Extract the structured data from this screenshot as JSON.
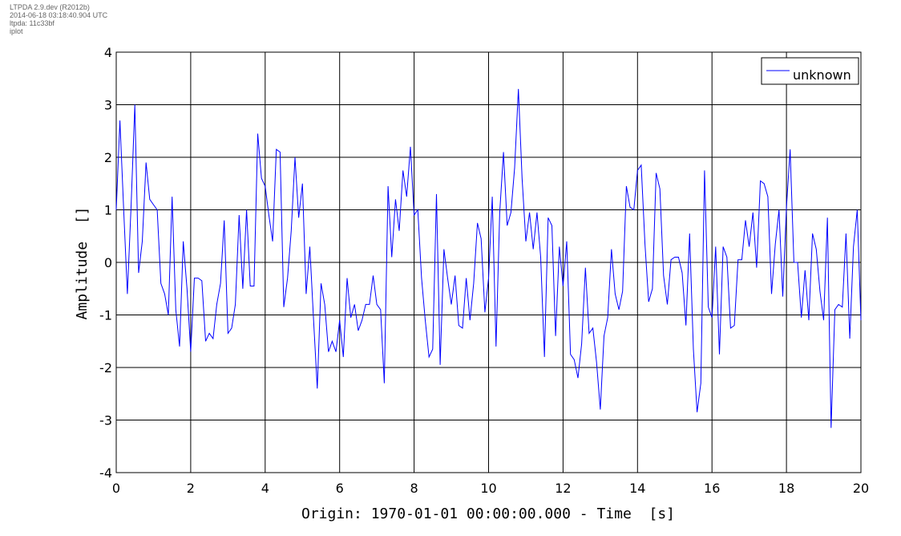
{
  "meta": {
    "line1": "LTPDA 2.9.dev (R2012b)",
    "line2": "2014-06-18 03:18:40.904 UTC",
    "line3": "ltpda: 11c33bf",
    "line4": "iplot"
  },
  "chart_data": {
    "type": "line",
    "xlabel": "Origin: 1970-01-01 00:00:00.000 - Time  [s]",
    "ylabel": "Amplitude  []",
    "xlim": [
      0,
      20
    ],
    "ylim": [
      -4,
      4
    ],
    "xticks": [
      0,
      2,
      4,
      6,
      8,
      10,
      12,
      14,
      16,
      18,
      20
    ],
    "yticks": [
      -4,
      -3,
      -2,
      -1,
      0,
      1,
      2,
      3,
      4
    ],
    "grid": true,
    "legend_position": "top-right",
    "line_color": "#0000ff",
    "series": [
      {
        "name": "unknown",
        "x": [
          0.0,
          0.1,
          0.2,
          0.3,
          0.4,
          0.5,
          0.6,
          0.7,
          0.8,
          0.9,
          1.0,
          1.1,
          1.2,
          1.3,
          1.4,
          1.5,
          1.6,
          1.7,
          1.8,
          1.9,
          2.0,
          2.1,
          2.2,
          2.3,
          2.4,
          2.5,
          2.6,
          2.7,
          2.8,
          2.9,
          3.0,
          3.1,
          3.2,
          3.3,
          3.4,
          3.5,
          3.6,
          3.7,
          3.8,
          3.9,
          4.0,
          4.1,
          4.2,
          4.3,
          4.4,
          4.5,
          4.6,
          4.7,
          4.8,
          4.9,
          5.0,
          5.1,
          5.2,
          5.3,
          5.4,
          5.5,
          5.6,
          5.7,
          5.8,
          5.9,
          6.0,
          6.1,
          6.2,
          6.3,
          6.4,
          6.5,
          6.6,
          6.7,
          6.8,
          6.9,
          7.0,
          7.1,
          7.2,
          7.3,
          7.4,
          7.5,
          7.6,
          7.7,
          7.8,
          7.9,
          8.0,
          8.1,
          8.2,
          8.3,
          8.4,
          8.5,
          8.6,
          8.7,
          8.8,
          8.9,
          9.0,
          9.1,
          9.2,
          9.3,
          9.4,
          9.5,
          9.6,
          9.7,
          9.8,
          9.9,
          10.0,
          10.1,
          10.2,
          10.3,
          10.4,
          10.5,
          10.6,
          10.7,
          10.8,
          10.9,
          11.0,
          11.1,
          11.2,
          11.3,
          11.4,
          11.5,
          11.6,
          11.7,
          11.8,
          11.9,
          12.0,
          12.1,
          12.2,
          12.3,
          12.4,
          12.5,
          12.6,
          12.7,
          12.8,
          12.9,
          13.0,
          13.1,
          13.2,
          13.3,
          13.4,
          13.5,
          13.6,
          13.7,
          13.8,
          13.9,
          14.0,
          14.1,
          14.2,
          14.3,
          14.4,
          14.5,
          14.6,
          14.7,
          14.8,
          14.9,
          15.0,
          15.1,
          15.2,
          15.3,
          15.4,
          15.5,
          15.6,
          15.7,
          15.8,
          15.9,
          16.0,
          16.1,
          16.2,
          16.3,
          16.4,
          16.5,
          16.6,
          16.7,
          16.8,
          16.9,
          17.0,
          17.1,
          17.2,
          17.3,
          17.4,
          17.5,
          17.6,
          17.7,
          17.8,
          17.9,
          18.0,
          18.1,
          18.2,
          18.3,
          18.4,
          18.5,
          18.6,
          18.7,
          18.8,
          18.9,
          19.0,
          19.1,
          19.2,
          19.3,
          19.4,
          19.5,
          19.6,
          19.7,
          19.8,
          19.9,
          20.0
        ],
        "y": [
          1.0,
          2.7,
          1.0,
          -0.6,
          1.1,
          3.0,
          -0.2,
          0.4,
          1.9,
          1.2,
          1.1,
          1.0,
          -0.4,
          -0.6,
          -1.0,
          1.25,
          -0.9,
          -1.6,
          0.4,
          -0.5,
          -1.7,
          -0.3,
          -0.3,
          -0.35,
          -1.5,
          -1.35,
          -1.45,
          -0.8,
          -0.4,
          0.8,
          -1.35,
          -1.25,
          -0.8,
          0.9,
          -0.5,
          1.0,
          -0.45,
          -0.45,
          2.45,
          1.6,
          1.45,
          0.9,
          0.4,
          2.15,
          2.1,
          -0.85,
          -0.3,
          0.6,
          2.0,
          0.85,
          1.5,
          -0.6,
          0.3,
          -1.1,
          -2.4,
          -0.4,
          -0.8,
          -1.7,
          -1.5,
          -1.7,
          -1.1,
          -1.8,
          -0.3,
          -1.05,
          -0.8,
          -1.3,
          -1.1,
          -0.8,
          -0.8,
          -0.25,
          -0.8,
          -0.9,
          -2.3,
          1.45,
          0.1,
          1.2,
          0.6,
          1.75,
          1.25,
          2.2,
          0.9,
          1.0,
          -0.3,
          -1.1,
          -1.8,
          -1.65,
          1.3,
          -1.95,
          0.25,
          -0.3,
          -0.8,
          -0.25,
          -1.2,
          -1.25,
          -0.3,
          -1.1,
          -0.4,
          0.75,
          0.45,
          -0.95,
          -0.3,
          1.25,
          -1.6,
          0.95,
          2.1,
          0.7,
          0.95,
          1.8,
          3.3,
          1.6,
          0.4,
          0.95,
          0.25,
          0.95,
          0.1,
          -1.8,
          0.85,
          0.7,
          -1.4,
          0.3,
          -0.45,
          0.4,
          -1.75,
          -1.85,
          -2.2,
          -1.55,
          -0.1,
          -1.35,
          -1.25,
          -1.9,
          -2.8,
          -1.4,
          -1.05,
          0.25,
          -0.6,
          -0.9,
          -0.55,
          1.45,
          1.05,
          1.0,
          1.75,
          1.85,
          0.35,
          -0.75,
          -0.5,
          1.7,
          1.4,
          -0.25,
          -0.8,
          0.05,
          0.1,
          0.1,
          -0.2,
          -1.2,
          0.55,
          -1.65,
          -2.85,
          -2.3,
          1.75,
          -0.85,
          -1.05,
          0.3,
          -1.75,
          0.3,
          0.1,
          -1.25,
          -1.2,
          0.05,
          0.05,
          0.8,
          0.3,
          0.95,
          -0.1,
          1.55,
          1.5,
          1.25,
          -0.6,
          0.35,
          1.0,
          -0.65,
          1.05,
          2.15,
          0.0,
          0.0,
          -1.05,
          -0.15,
          -1.1,
          0.55,
          0.25,
          -0.55,
          -1.1,
          0.85,
          -3.15,
          -0.9,
          -0.8,
          -0.85,
          0.55,
          -1.45,
          0.3,
          1.0,
          -1.1
        ]
      }
    ]
  }
}
